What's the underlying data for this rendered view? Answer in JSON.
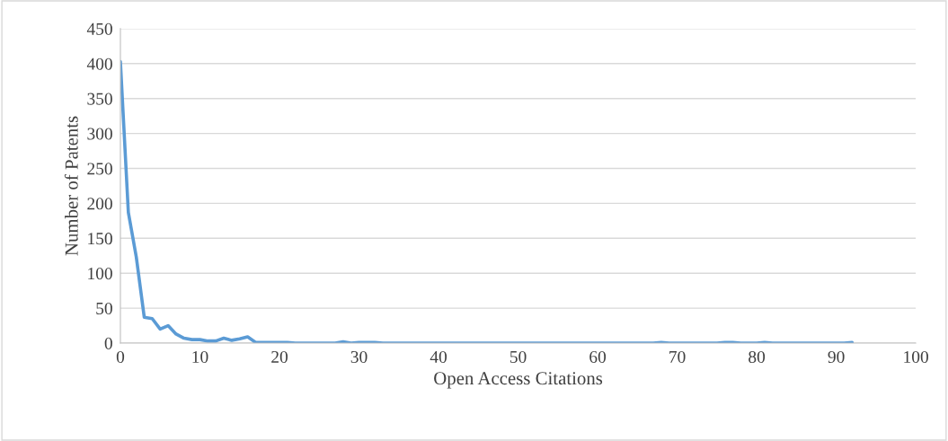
{
  "chart_data": {
    "type": "line",
    "xlabel": "Open Access Citations",
    "ylabel": "Number of Patents",
    "x": [
      0,
      1,
      2,
      3,
      4,
      5,
      6,
      7,
      8,
      9,
      10,
      11,
      12,
      13,
      14,
      15,
      16,
      17,
      18,
      19,
      20,
      21,
      22,
      23,
      24,
      25,
      26,
      27,
      28,
      29,
      30,
      31,
      32,
      33,
      34,
      35,
      36,
      37,
      38,
      39,
      40,
      41,
      42,
      43,
      44,
      45,
      46,
      47,
      48,
      49,
      50,
      51,
      52,
      53,
      54,
      55,
      56,
      57,
      58,
      59,
      60,
      61,
      62,
      63,
      64,
      65,
      66,
      67,
      68,
      69,
      70,
      71,
      72,
      73,
      74,
      75,
      76,
      77,
      78,
      79,
      80,
      81,
      82,
      83,
      84,
      85,
      86,
      87,
      88,
      89,
      90,
      91,
      92
    ],
    "series": [
      {
        "color": "#5b9bd5",
        "values": [
          403,
          187,
          123,
          37,
          35,
          20,
          25,
          13,
          7,
          5,
          5,
          3,
          3,
          7,
          4,
          6,
          9,
          1,
          1,
          1,
          1,
          1,
          0,
          0,
          0,
          0,
          0,
          0,
          2,
          0,
          1,
          1,
          1,
          0,
          0,
          0,
          0,
          0,
          0,
          0,
          0,
          0,
          0,
          0,
          0,
          0,
          0,
          0,
          0,
          0,
          0,
          0,
          0,
          0,
          0,
          0,
          0,
          0,
          0,
          0,
          0,
          0,
          0,
          0,
          0,
          0,
          0,
          0,
          1,
          0,
          0,
          0,
          0,
          0,
          0,
          0,
          1,
          1,
          0,
          0,
          0,
          1,
          0,
          0,
          0,
          0,
          0,
          0,
          0,
          0,
          0,
          0,
          1
        ]
      }
    ],
    "xlim": [
      0,
      100
    ],
    "xticks": [
      0,
      10,
      20,
      30,
      40,
      50,
      60,
      70,
      80,
      90,
      100
    ],
    "ylim": [
      0,
      450
    ],
    "yticks": [
      0,
      50,
      100,
      150,
      200,
      250,
      300,
      350,
      400,
      450
    ],
    "grid": "y",
    "legend": false,
    "marker": "none",
    "line_style": "solid"
  }
}
